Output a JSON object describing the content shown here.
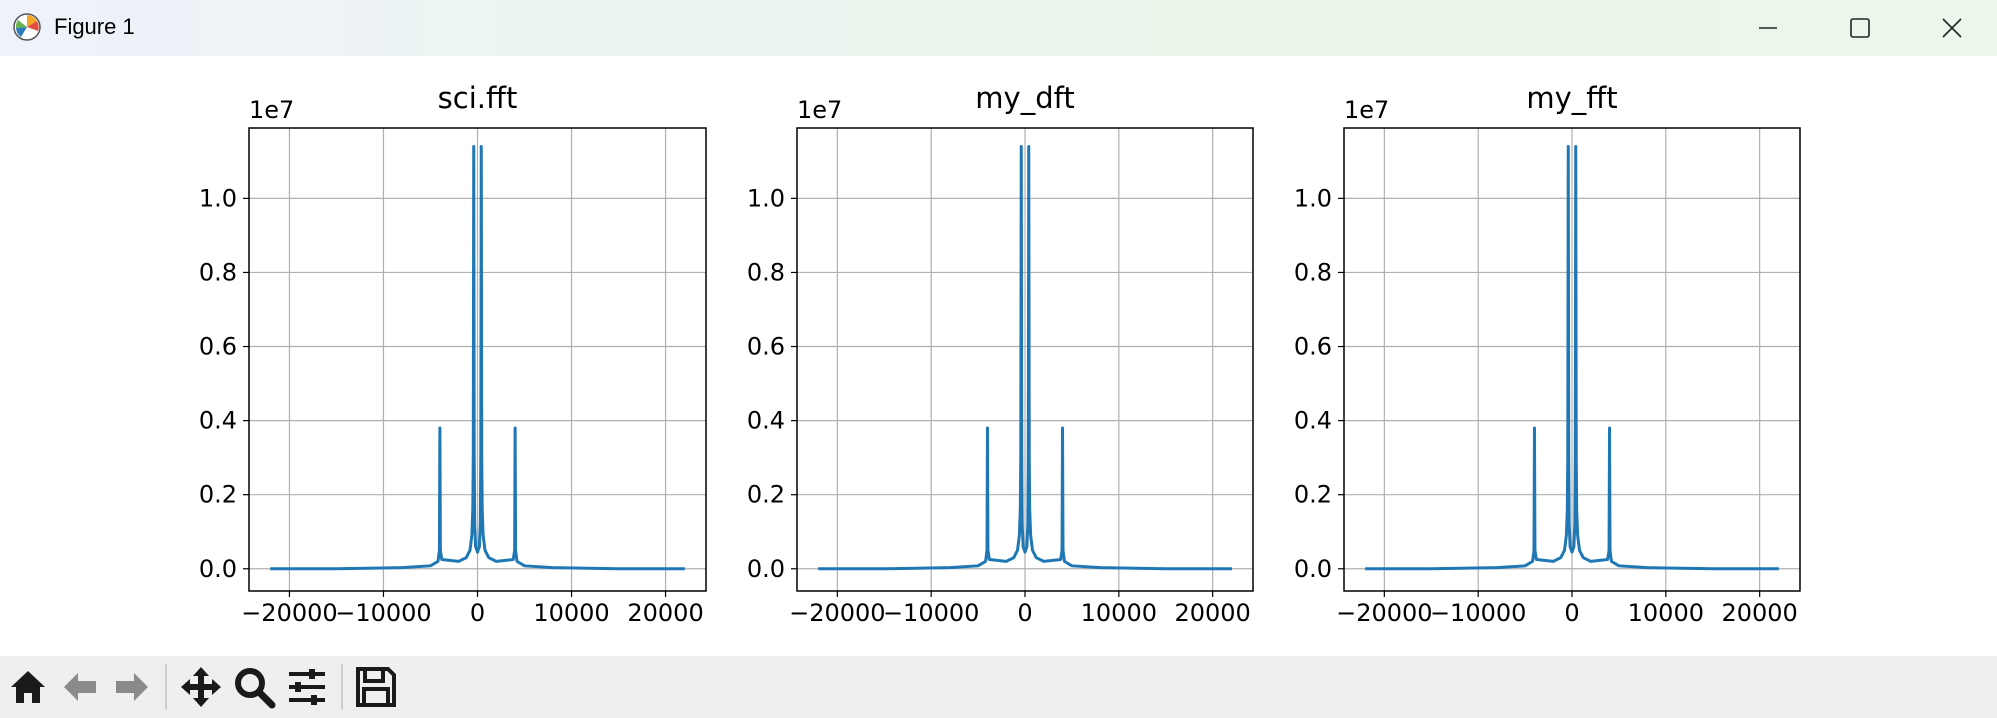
{
  "window": {
    "title": "Figure 1",
    "controls": [
      "minimize",
      "maximize",
      "close"
    ]
  },
  "toolbar": {
    "buttons": [
      "home-icon",
      "back-arrow-icon",
      "forward-arrow-icon",
      "pan-icon",
      "zoom-icon",
      "configure-subplots-icon",
      "save-icon"
    ]
  },
  "colors": {
    "line": "#1f77b4",
    "grid": "#b0b0b0",
    "toolbar_bg": "#efefef"
  },
  "chart_data": [
    {
      "type": "line",
      "title": "sci.fft",
      "xlabel": "",
      "ylabel": "",
      "y_offset_text": "1e7",
      "xticks": [
        -20000,
        -10000,
        0,
        10000,
        20000
      ],
      "xtick_labels": [
        "−20000",
        "−10000",
        "0",
        "10000",
        "20000"
      ],
      "yticks": [
        0.0,
        0.2,
        0.4,
        0.6,
        0.8,
        1.0
      ],
      "ytick_labels": [
        "0.0",
        "0.2",
        "0.4",
        "0.6",
        "0.8",
        "1.0"
      ],
      "xlim": [
        -24300,
        24300
      ],
      "ylim": [
        -0.06,
        1.19
      ],
      "grid": true,
      "series": [
        {
          "x": [
            -22050,
            -15000,
            -8000,
            -5000,
            -4200,
            -4050,
            -4000,
            -3950,
            -3800,
            -2000,
            -1200,
            -800,
            -600,
            -500,
            -450,
            -400,
            -350,
            -300,
            -200,
            0,
            200,
            300,
            350,
            400,
            450,
            500,
            600,
            800,
            1200,
            2000,
            3800,
            3950,
            4000,
            4050,
            4200,
            5000,
            8000,
            15000,
            22050
          ],
          "y": [
            0.0,
            0.0,
            0.003,
            0.008,
            0.02,
            0.05,
            0.38,
            0.05,
            0.025,
            0.02,
            0.03,
            0.05,
            0.09,
            0.16,
            0.3,
            1.14,
            0.3,
            0.12,
            0.06,
            0.045,
            0.06,
            0.12,
            0.3,
            1.14,
            0.3,
            0.16,
            0.09,
            0.05,
            0.03,
            0.02,
            0.025,
            0.05,
            0.38,
            0.05,
            0.02,
            0.008,
            0.003,
            0.0,
            0.0
          ]
        }
      ]
    },
    {
      "type": "line",
      "title": "my_dft",
      "xlabel": "",
      "ylabel": "",
      "y_offset_text": "1e7",
      "xticks": [
        -20000,
        -10000,
        0,
        10000,
        20000
      ],
      "xtick_labels": [
        "−20000",
        "−10000",
        "0",
        "10000",
        "20000"
      ],
      "yticks": [
        0.0,
        0.2,
        0.4,
        0.6,
        0.8,
        1.0
      ],
      "ytick_labels": [
        "0.0",
        "0.2",
        "0.4",
        "0.6",
        "0.8",
        "1.0"
      ],
      "xlim": [
        -24300,
        24300
      ],
      "ylim": [
        -0.06,
        1.19
      ],
      "grid": true,
      "series": [
        {
          "x": [
            -22050,
            -15000,
            -8000,
            -5000,
            -4200,
            -4050,
            -4000,
            -3950,
            -3800,
            -2000,
            -1200,
            -800,
            -600,
            -500,
            -450,
            -400,
            -350,
            -300,
            -200,
            0,
            200,
            300,
            350,
            400,
            450,
            500,
            600,
            800,
            1200,
            2000,
            3800,
            3950,
            4000,
            4050,
            4200,
            5000,
            8000,
            15000,
            22050
          ],
          "y": [
            0.0,
            0.0,
            0.003,
            0.008,
            0.02,
            0.05,
            0.38,
            0.05,
            0.025,
            0.02,
            0.03,
            0.05,
            0.09,
            0.16,
            0.3,
            1.14,
            0.3,
            0.12,
            0.06,
            0.045,
            0.06,
            0.12,
            0.3,
            1.14,
            0.3,
            0.16,
            0.09,
            0.05,
            0.03,
            0.02,
            0.025,
            0.05,
            0.38,
            0.05,
            0.02,
            0.008,
            0.003,
            0.0,
            0.0
          ]
        }
      ]
    },
    {
      "type": "line",
      "title": "my_fft",
      "xlabel": "",
      "ylabel": "",
      "y_offset_text": "1e7",
      "xticks": [
        -20000,
        -10000,
        0,
        10000,
        20000
      ],
      "xtick_labels": [
        "−20000",
        "−10000",
        "0",
        "10000",
        "20000"
      ],
      "yticks": [
        0.0,
        0.2,
        0.4,
        0.6,
        0.8,
        1.0
      ],
      "ytick_labels": [
        "0.0",
        "0.2",
        "0.4",
        "0.6",
        "0.8",
        "1.0"
      ],
      "xlim": [
        -24300,
        24300
      ],
      "ylim": [
        -0.06,
        1.19
      ],
      "grid": true,
      "series": [
        {
          "x": [
            -22050,
            -15000,
            -8000,
            -5000,
            -4200,
            -4050,
            -4000,
            -3950,
            -3800,
            -2000,
            -1200,
            -800,
            -600,
            -500,
            -450,
            -400,
            -350,
            -300,
            -200,
            0,
            200,
            300,
            350,
            400,
            450,
            500,
            600,
            800,
            1200,
            2000,
            3800,
            3950,
            4000,
            4050,
            4200,
            5000,
            8000,
            15000,
            22050
          ],
          "y": [
            0.0,
            0.0,
            0.003,
            0.008,
            0.02,
            0.05,
            0.38,
            0.05,
            0.025,
            0.02,
            0.03,
            0.05,
            0.09,
            0.16,
            0.3,
            1.14,
            0.3,
            0.12,
            0.06,
            0.045,
            0.06,
            0.12,
            0.3,
            1.14,
            0.3,
            0.16,
            0.09,
            0.05,
            0.03,
            0.02,
            0.025,
            0.05,
            0.38,
            0.05,
            0.02,
            0.008,
            0.003,
            0.0,
            0.0
          ]
        }
      ]
    }
  ]
}
